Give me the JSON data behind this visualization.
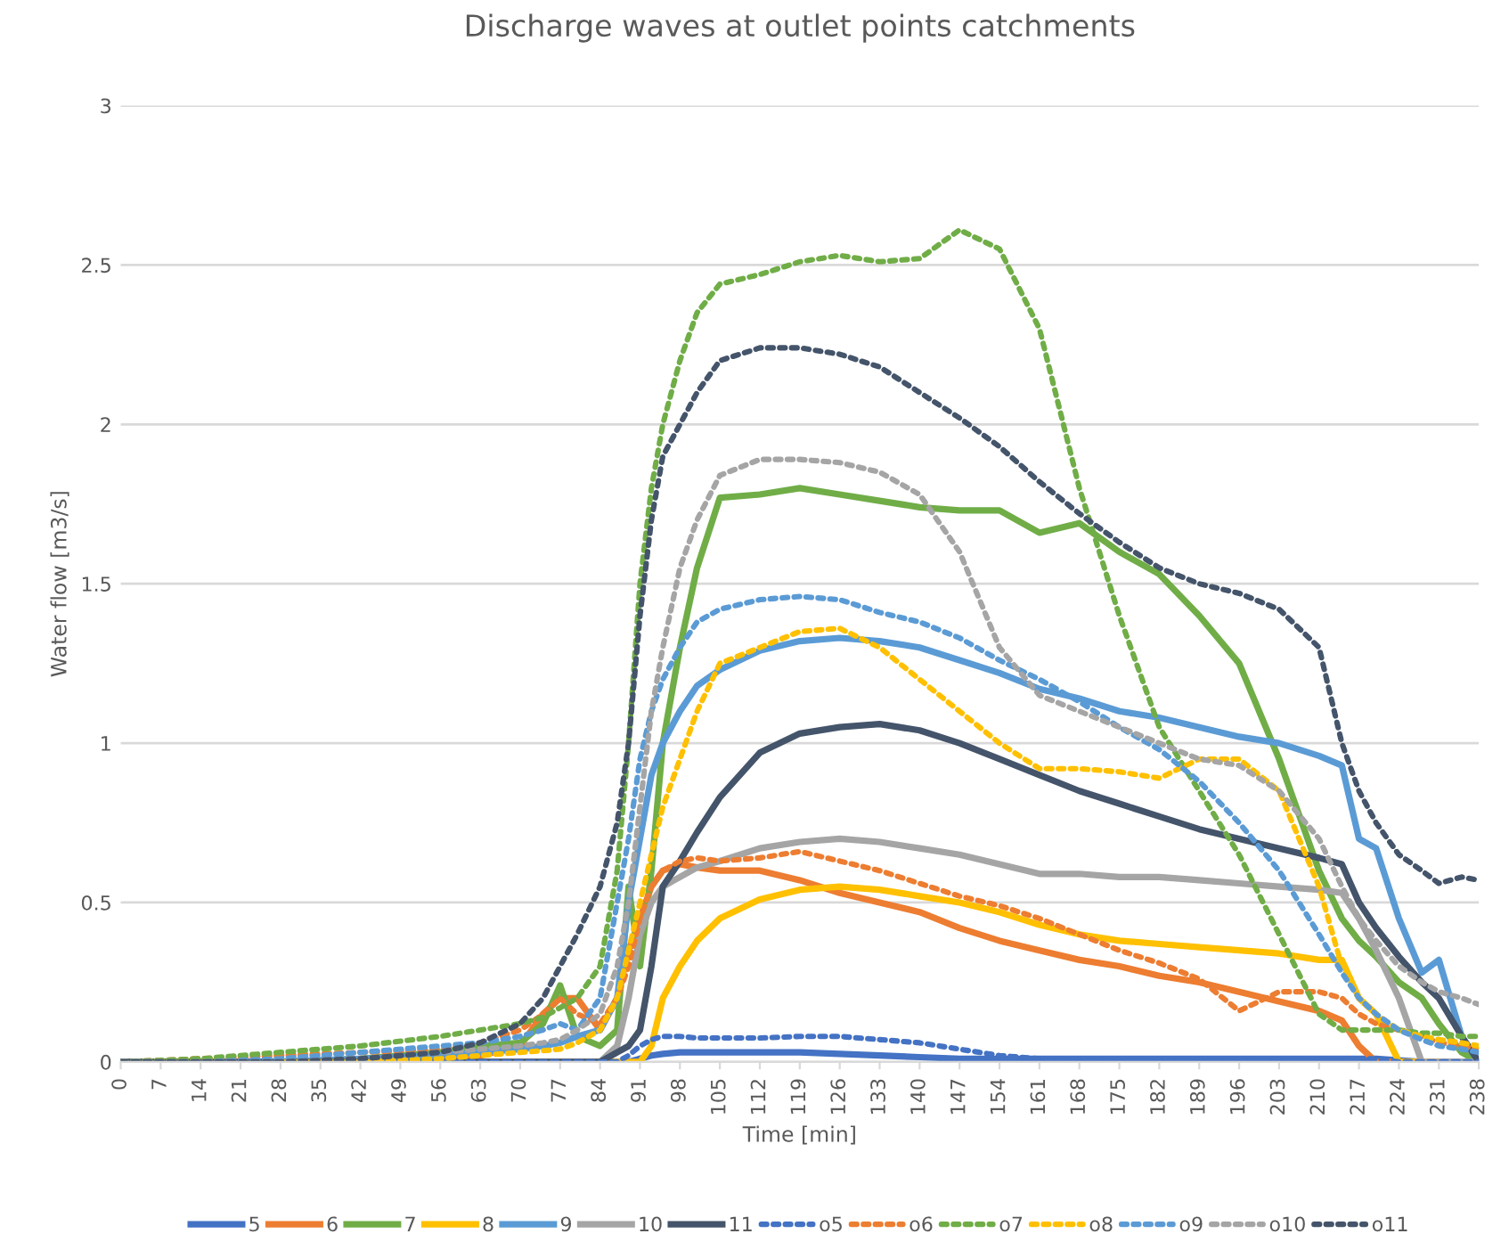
{
  "chart_data": {
    "type": "line",
    "title": "Discharge waves at outlet points catchments",
    "xlabel": "Time [min]",
    "ylabel": "Water flow [m3/s]",
    "x": [
      0,
      14,
      28,
      42,
      56,
      63,
      70,
      74,
      77,
      80,
      84,
      87,
      89,
      91,
      93,
      95,
      98,
      101,
      105,
      112,
      119,
      126,
      133,
      140,
      147,
      154,
      161,
      168,
      175,
      182,
      189,
      196,
      203,
      210,
      214,
      217,
      220,
      224,
      228,
      231,
      235,
      238
    ],
    "xlim": [
      0,
      238
    ],
    "xticks": [
      0,
      7,
      14,
      21,
      28,
      35,
      42,
      49,
      56,
      63,
      70,
      77,
      84,
      91,
      98,
      105,
      112,
      119,
      126,
      133,
      140,
      147,
      154,
      161,
      168,
      175,
      182,
      189,
      196,
      203,
      210,
      217,
      224,
      231,
      238
    ],
    "ylim": [
      0,
      3
    ],
    "yticks": [
      0,
      0.5,
      1,
      1.5,
      2,
      2.5,
      3
    ],
    "grid": "y",
    "legend": "bottom",
    "marker": "none",
    "series": [
      {
        "name": "5",
        "color": "#4472c4",
        "line_style": "solid",
        "values": [
          0,
          0,
          0,
          0,
          0,
          0,
          0,
          0,
          0,
          0,
          0,
          0,
          0,
          0.01,
          0.02,
          0.025,
          0.03,
          0.03,
          0.03,
          0.03,
          0.03,
          0.025,
          0.02,
          0.015,
          0.01,
          0.01,
          0.01,
          0.01,
          0.01,
          0.01,
          0.01,
          0.01,
          0.01,
          0.01,
          0.01,
          0.01,
          0.01,
          0.005,
          0,
          0,
          0,
          0
        ]
      },
      {
        "name": "6",
        "color": "#ed7d31",
        "line_style": "solid",
        "values": [
          0,
          0,
          0,
          0,
          0.01,
          0.02,
          0.05,
          0.15,
          0.2,
          0.2,
          0.1,
          0.2,
          0.35,
          0.45,
          0.55,
          0.6,
          0.62,
          0.61,
          0.6,
          0.6,
          0.57,
          0.53,
          0.5,
          0.47,
          0.42,
          0.38,
          0.35,
          0.32,
          0.3,
          0.27,
          0.25,
          0.22,
          0.19,
          0.16,
          0.13,
          0.05,
          0,
          0,
          0,
          0,
          null,
          null
        ]
      },
      {
        "name": "7",
        "color": "#70ad47",
        "line_style": "solid",
        "values": [
          0,
          0,
          0,
          0.01,
          0.03,
          0.05,
          0.06,
          0.12,
          0.24,
          0.08,
          0.05,
          0.1,
          0.55,
          0.3,
          0.6,
          1.0,
          1.3,
          1.55,
          1.77,
          1.78,
          1.8,
          1.78,
          1.76,
          1.74,
          1.73,
          1.73,
          1.66,
          1.69,
          1.6,
          1.53,
          1.4,
          1.25,
          0.95,
          0.6,
          0.45,
          0.38,
          0.33,
          0.25,
          0.2,
          0.12,
          0.03,
          0
        ]
      },
      {
        "name": "8",
        "color": "#ffc000",
        "line_style": "solid",
        "values": [
          null,
          null,
          0,
          0,
          0,
          0,
          0,
          0,
          0,
          0,
          0,
          0,
          0,
          0,
          0.05,
          0.2,
          0.3,
          0.38,
          0.45,
          0.51,
          0.54,
          0.55,
          0.54,
          0.52,
          0.5,
          0.47,
          0.43,
          0.4,
          0.38,
          0.37,
          0.36,
          0.35,
          0.34,
          0.32,
          0.32,
          0.2,
          0.15,
          0,
          0,
          0,
          null,
          null
        ]
      },
      {
        "name": "9",
        "color": "#5b9bd5",
        "line_style": "solid",
        "values": [
          0,
          0,
          0,
          0.01,
          0.02,
          0.03,
          0.04,
          0.05,
          0.06,
          0.08,
          0.1,
          0.2,
          0.5,
          0.7,
          0.9,
          1.0,
          1.1,
          1.18,
          1.23,
          1.29,
          1.32,
          1.33,
          1.32,
          1.3,
          1.26,
          1.22,
          1.17,
          1.14,
          1.1,
          1.08,
          1.05,
          1.02,
          1.0,
          0.96,
          0.93,
          0.7,
          0.67,
          0.45,
          0.28,
          0.32,
          0.08,
          0
        ]
      },
      {
        "name": "10",
        "color": "#a5a5a5",
        "line_style": "solid",
        "values": [
          0,
          0,
          0,
          0,
          0,
          0,
          0,
          0,
          0,
          0,
          0,
          0.05,
          0.2,
          0.4,
          0.5,
          0.55,
          0.58,
          0.61,
          0.63,
          0.67,
          0.69,
          0.7,
          0.69,
          0.67,
          0.65,
          0.62,
          0.59,
          0.59,
          0.58,
          0.58,
          0.57,
          0.56,
          0.55,
          0.54,
          0.53,
          0.45,
          0.35,
          0.2,
          0,
          0,
          0,
          0
        ]
      },
      {
        "name": "11",
        "color": "#44546a",
        "line_style": "solid",
        "values": [
          0,
          0,
          0,
          0,
          0,
          0,
          0,
          0,
          0,
          0,
          0,
          0.03,
          0.05,
          0.1,
          0.3,
          0.55,
          0.63,
          0.72,
          0.83,
          0.97,
          1.03,
          1.05,
          1.06,
          1.04,
          1.0,
          0.95,
          0.9,
          0.85,
          0.81,
          0.77,
          0.73,
          0.7,
          0.67,
          0.64,
          0.62,
          0.5,
          0.42,
          0.33,
          0.25,
          0.2,
          0.08,
          0
        ]
      },
      {
        "name": "o5",
        "color": "#4472c4",
        "line_style": "dotted",
        "values": [
          0,
          0,
          0,
          0,
          0,
          0,
          0,
          0,
          0,
          0,
          0,
          0,
          0.02,
          0.05,
          0.07,
          0.08,
          0.08,
          0.075,
          0.075,
          0.075,
          0.08,
          0.08,
          0.07,
          0.06,
          0.04,
          0.02,
          0.01,
          0.01,
          0.01,
          0.01,
          0.01,
          0.01,
          0.01,
          0.01,
          0.01,
          0.01,
          0.01,
          0,
          0,
          0,
          0,
          0
        ]
      },
      {
        "name": "o6",
        "color": "#ed7d31",
        "line_style": "dotted",
        "values": [
          0,
          0.01,
          0.02,
          0.03,
          0.04,
          0.06,
          0.1,
          0.15,
          0.2,
          0.15,
          0.12,
          0.2,
          0.3,
          0.45,
          0.55,
          0.6,
          0.63,
          0.64,
          0.63,
          0.64,
          0.66,
          0.63,
          0.6,
          0.56,
          0.52,
          0.49,
          0.45,
          0.4,
          0.35,
          0.31,
          0.26,
          0.16,
          0.22,
          0.22,
          0.2,
          0.15,
          0.12,
          0.1,
          0.08,
          0.06,
          0.05,
          0.04
        ]
      },
      {
        "name": "o7",
        "color": "#70ad47",
        "line_style": "dotted",
        "values": [
          0,
          0.01,
          0.03,
          0.05,
          0.08,
          0.1,
          0.12,
          0.14,
          0.17,
          0.2,
          0.3,
          0.6,
          1.0,
          1.5,
          1.8,
          2.0,
          2.2,
          2.35,
          2.44,
          2.47,
          2.51,
          2.53,
          2.51,
          2.52,
          2.61,
          2.55,
          2.3,
          1.8,
          1.4,
          1.05,
          0.85,
          0.65,
          0.4,
          0.15,
          0.1,
          0.1,
          0.1,
          0.1,
          0.09,
          0.09,
          0.08,
          0.08
        ]
      },
      {
        "name": "o8",
        "color": "#ffc000",
        "line_style": "dotted",
        "values": [
          null,
          null,
          0,
          0,
          0.01,
          0.02,
          0.03,
          0.035,
          0.04,
          0.06,
          0.1,
          0.2,
          0.35,
          0.5,
          0.65,
          0.8,
          0.95,
          1.1,
          1.25,
          1.3,
          1.35,
          1.36,
          1.3,
          1.2,
          1.1,
          1.0,
          0.92,
          0.92,
          0.91,
          0.89,
          0.95,
          0.95,
          0.85,
          0.55,
          0.3,
          0.2,
          0.15,
          0.1,
          0.08,
          0.07,
          0.06,
          0.05
        ]
      },
      {
        "name": "o9",
        "color": "#5b9bd5",
        "line_style": "dotted",
        "values": [
          0,
          0,
          0.01,
          0.03,
          0.05,
          0.06,
          0.08,
          0.1,
          0.12,
          0.1,
          0.2,
          0.5,
          0.7,
          0.95,
          1.1,
          1.2,
          1.3,
          1.38,
          1.42,
          1.45,
          1.46,
          1.45,
          1.41,
          1.38,
          1.33,
          1.26,
          1.2,
          1.13,
          1.05,
          0.98,
          0.88,
          0.75,
          0.6,
          0.4,
          0.28,
          0.2,
          0.15,
          0.1,
          0.07,
          0.05,
          0.04,
          0.03
        ]
      },
      {
        "name": "o10",
        "color": "#a5a5a5",
        "line_style": "dotted",
        "values": [
          0,
          0,
          0,
          0.01,
          0.03,
          0.04,
          0.05,
          0.06,
          0.07,
          0.1,
          0.15,
          0.3,
          0.5,
          0.8,
          1.1,
          1.3,
          1.55,
          1.7,
          1.84,
          1.89,
          1.89,
          1.88,
          1.85,
          1.78,
          1.6,
          1.3,
          1.15,
          1.1,
          1.05,
          1.0,
          0.95,
          0.93,
          0.85,
          0.7,
          0.55,
          0.45,
          0.38,
          0.3,
          0.25,
          0.22,
          0.2,
          0.18
        ]
      },
      {
        "name": "o11",
        "color": "#44546a",
        "line_style": "dotted",
        "values": [
          0,
          0,
          0,
          0.01,
          0.03,
          0.06,
          0.12,
          0.2,
          0.3,
          0.4,
          0.55,
          0.75,
          1.0,
          1.4,
          1.7,
          1.9,
          2.0,
          2.1,
          2.2,
          2.24,
          2.24,
          2.22,
          2.18,
          2.1,
          2.02,
          1.93,
          1.82,
          1.72,
          1.63,
          1.55,
          1.5,
          1.47,
          1.42,
          1.3,
          1.0,
          0.85,
          0.75,
          0.65,
          0.6,
          0.56,
          0.58,
          0.57
        ]
      }
    ]
  }
}
